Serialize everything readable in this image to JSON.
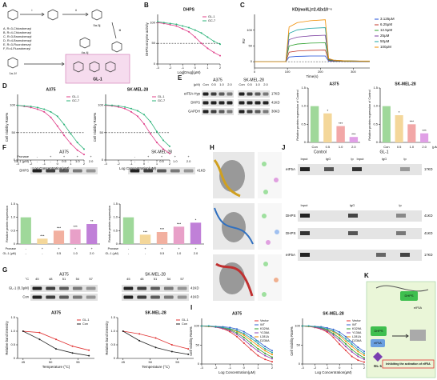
{
  "letters": [
    "A",
    "B",
    "C",
    "D",
    "E",
    "F",
    "G",
    "H",
    "I",
    "J",
    "K"
  ],
  "scheme": {
    "texts": [
      "i",
      "ii",
      "iii",
      "A, R=3-Chlorobenzyl",
      "B, R=4-Chlorobenzyl",
      "C, R=3-Bromobenzyl",
      "D, R=4-Bromobenzyl",
      "E, R=3-Fluorobenzyl",
      "F, R=4-Fluorobenzyl",
      "4a-4j",
      "5a-5j",
      "1a-1f",
      "GL-1"
    ]
  },
  "blots": {
    "E": [
      {
        "title": "A375",
        "rows": [
          {
            "label": "(μM)",
            "cells": [
              "Con",
              "0.5",
              "1.0",
              "2.0"
            ]
          }
        ],
        "bands": [
          {
            "label": "eIF5A-Hyp"
          },
          {
            "label": "DHPS"
          },
          {
            "label": "GAPDH"
          }
        ]
      },
      {
        "title": "SK-MEL-28",
        "rows": [
          {
            "cells": [
              "Con",
              "0.5",
              "1.0",
              "2.0"
            ]
          }
        ],
        "bands": [
          {
            "size": "17KD"
          },
          {
            "size": "41KD"
          },
          {
            "size": "36KD"
          }
        ]
      }
    ],
    "F": [
      {
        "title": "A375",
        "rows": [
          {
            "label": "Pronase",
            "cells": [
              "-",
              "+",
              "+",
              "+",
              "+"
            ]
          },
          {
            "label": "GL-1 (μM)",
            "cells": [
              "-",
              "-",
              "0.5",
              "1.0",
              "2.0"
            ]
          }
        ],
        "bands": [
          {
            "label": "DHPS"
          }
        ]
      },
      {
        "title": "SK-MEL-28",
        "rows": [
          {
            "cells": [
              "-",
              "+",
              "+",
              "+",
              "+"
            ]
          },
          {
            "cells": [
              "-",
              "-",
              "0.5",
              "1.0",
              "2.0"
            ]
          }
        ],
        "bands": [
          {
            "size": "41KD"
          }
        ]
      }
    ],
    "G": [
      {
        "title": "A375",
        "rows": [
          {
            "label": "°C",
            "cells": [
              "45",
              "48",
              "51",
              "54",
              "57"
            ]
          }
        ],
        "bands": [
          {
            "label": "GL-1 (0.3μM)"
          },
          {
            "label": "Con"
          }
        ]
      },
      {
        "title": "SK-MEL-28",
        "rows": [
          {
            "cells": [
              "45",
              "48",
              "51",
              "54",
              "57"
            ]
          }
        ],
        "bands": [
          {
            "size": "41KD"
          },
          {
            "size": "41KD"
          }
        ]
      }
    ]
  },
  "panel_J": {
    "texts": [
      "Control",
      "GL-1",
      "Input",
      "IgG",
      "Ip",
      "Input",
      "IgG",
      "Ip",
      "eIF5A",
      "17KD",
      "Input",
      "IgG",
      "Ip",
      "DHPS",
      "41KD",
      "DHPS",
      "41KD",
      "eIF5A",
      "17KD"
    ]
  },
  "panel_K": {
    "texts": [
      "GL-1",
      "DHPS",
      "eIF5A",
      "DHPS",
      "eIF5A",
      "Inhibiting the activation of eIF5A"
    ]
  },
  "chart_data": [
    {
      "type": "line",
      "title": "DHPS",
      "xlabel": "Log[Drug](μM)",
      "ylabel": "DHPS enzyme activity",
      "x": [
        -3,
        -2.5,
        -2,
        -1.5,
        -1,
        -0.5,
        0,
        0.5,
        1,
        1.5,
        2
      ],
      "series": [
        {
          "name": "GL-1",
          "color": "#e0408a",
          "values": [
            100,
            98,
            95,
            92,
            85,
            78,
            65,
            50,
            38,
            28,
            20
          ]
        },
        {
          "name": "GC-7",
          "color": "#2db37a",
          "values": [
            102,
            100,
            98,
            96,
            92,
            88,
            82,
            75,
            65,
            55,
            48
          ]
        }
      ],
      "xlim": [
        -3,
        2
      ],
      "ylim": [
        0,
        120
      ],
      "xticks": [
        -3,
        -2,
        -1,
        0,
        1,
        2
      ],
      "yticks": [
        0,
        50,
        100
      ],
      "hline": 50,
      "markers": true,
      "legend": "upper right"
    },
    {
      "type": "line",
      "title": "KD(mol/L)=2.42x10⁻⁶",
      "xlabel": "Time(s)",
      "ylabel": "RU",
      "x": [
        0,
        50,
        95,
        105,
        130,
        170,
        215,
        225,
        240,
        270,
        310,
        350
      ],
      "series": [
        {
          "name": "3.125μM",
          "color": "#1f4fd8",
          "values": [
            0,
            0,
            0,
            15,
            17,
            18,
            18,
            2,
            1,
            1,
            0,
            0
          ]
        },
        {
          "name": "6.25μM",
          "color": "#c0392b",
          "values": [
            0,
            0,
            0,
            30,
            34,
            36,
            37,
            4,
            2,
            1,
            1,
            0
          ]
        },
        {
          "name": "12.5μM",
          "color": "#2ca02c",
          "values": [
            0,
            0,
            0,
            50,
            56,
            59,
            60,
            6,
            3,
            2,
            1,
            1
          ]
        },
        {
          "name": "25μM",
          "color": "#7b3fa0",
          "values": [
            0,
            0,
            0,
            70,
            78,
            82,
            84,
            8,
            4,
            3,
            2,
            1
          ]
        },
        {
          "name": "50μM",
          "color": "#1aa3a3",
          "values": [
            0,
            0,
            0,
            90,
            101,
            106,
            108,
            9,
            5,
            3,
            2,
            1
          ]
        },
        {
          "name": "100μM",
          "color": "#f08c00",
          "values": [
            0,
            0,
            0,
            110,
            124,
            130,
            133,
            10,
            5,
            3,
            2,
            2
          ]
        }
      ],
      "xlim": [
        0,
        350
      ],
      "ylim": [
        -20,
        150
      ],
      "xticks": [
        0,
        100,
        200,
        300
      ],
      "yticks": [
        0,
        50,
        100
      ],
      "hline": 0,
      "legend": "right"
    },
    {
      "type": "line",
      "title": "A375",
      "xlabel": "Log Concentration(μM)",
      "ylabel": "Cell Viability Rate%",
      "x": [
        -3,
        -2.5,
        -2,
        -1.5,
        -1,
        -0.5,
        0,
        0.5,
        1,
        1.5,
        2
      ],
      "series": [
        {
          "name": "GL-1",
          "color": "#e0408a",
          "values": [
            100,
            98,
            96,
            93,
            88,
            78,
            62,
            45,
            30,
            18,
            10
          ]
        },
        {
          "name": "GC-7",
          "color": "#2db37a",
          "values": [
            100,
            99,
            98,
            96,
            93,
            88,
            80,
            65,
            48,
            32,
            20
          ]
        }
      ],
      "xlim": [
        -3,
        2
      ],
      "ylim": [
        0,
        120
      ],
      "xticks": [
        -3,
        -2,
        -1,
        0,
        1,
        2
      ],
      "yticks": [
        0,
        50,
        100
      ],
      "hline": 50,
      "markers": true,
      "legend": "upper right"
    },
    {
      "type": "line",
      "title": "SK-MEL-28",
      "xlabel": "Log Concentration(μM)",
      "ylabel": "Cell Viability Rate%",
      "x": [
        -3,
        -2.5,
        -2,
        -1.5,
        -1,
        -0.5,
        0,
        0.5,
        1,
        1.5,
        2
      ],
      "series": [
        {
          "name": "GL-1",
          "color": "#e0408a",
          "values": [
            100,
            99,
            97,
            94,
            88,
            80,
            66,
            48,
            32,
            20,
            12
          ]
        },
        {
          "name": "GC-7",
          "color": "#2db37a",
          "values": [
            101,
            100,
            99,
            97,
            94,
            90,
            83,
            70,
            52,
            36,
            25
          ]
        }
      ],
      "xlim": [
        -3,
        2
      ],
      "ylim": [
        0,
        120
      ],
      "xticks": [
        -3,
        -2,
        -1,
        0,
        1,
        2
      ],
      "yticks": [
        0,
        50,
        100
      ],
      "hline": 50,
      "markers": true,
      "legend": "upper right"
    },
    {
      "type": "bar",
      "title": "A375",
      "ylabel": "Relative protein expression of Control",
      "categories": [
        "Con",
        "0.5",
        "1.0",
        "2.0"
      ],
      "values": [
        1.0,
        0.8,
        0.45,
        0.15
      ],
      "annotations": [
        null,
        "*",
        "***",
        "***"
      ],
      "colors": [
        "#9fd89a",
        "#f4d79a",
        "#f2a7a7",
        "#e0a0e6"
      ],
      "ylim": [
        0,
        1.5
      ],
      "yticks": [
        0,
        0.5,
        {
          "value": 1,
          "label": "1.0"
        },
        1.5
      ]
    },
    {
      "type": "bar",
      "title": "SK-MEL-28",
      "ylabel": "Relative protein expression of Control",
      "categories": [
        "Con",
        "0.5",
        "1.0",
        "2.0"
      ],
      "values": [
        1.0,
        0.75,
        0.5,
        0.25
      ],
      "annotations": [
        null,
        "*",
        "***",
        "***"
      ],
      "colors": [
        "#9fd89a",
        "#f4d79a",
        "#f2a7a7",
        "#e0a0e6"
      ],
      "ylim": [
        0,
        1.5
      ],
      "yticks": [
        0,
        0.5,
        {
          "value": 1,
          "label": "1.0"
        },
        1.5
      ],
      "xunit": "(μM)"
    },
    {
      "type": "bar",
      "ylabel": "Relative protein expression",
      "row_labels": [
        "Pronase",
        "GL-1 (μM)"
      ],
      "pronase": [
        "-",
        "+",
        "+",
        "+",
        "+"
      ],
      "categories": [
        "-",
        "-",
        "0.5",
        "1.0",
        "2.0"
      ],
      "values": [
        1.0,
        0.2,
        0.5,
        0.55,
        0.75
      ],
      "annotations": [
        null,
        "***",
        "***",
        "***",
        "**"
      ],
      "colors": [
        "#9fd89a",
        "#f4d79a",
        "#f2b0a0",
        "#e8a0c8",
        "#c080d8"
      ],
      "ylim": [
        0,
        1.5
      ],
      "yticks": [
        0,
        0.5,
        {
          "value": 1,
          "label": "1.0"
        },
        1.5
      ]
    },
    {
      "type": "bar",
      "ylabel": "Relative protein expression",
      "row_labels": [
        "Pronase",
        "GL-1 (μM)"
      ],
      "pronase": [
        "-",
        "+",
        "+",
        "+",
        "+"
      ],
      "categories": [
        "-",
        "-",
        "0.5",
        "1.0",
        "2.0"
      ],
      "values": [
        1.0,
        0.35,
        0.45,
        0.65,
        0.8
      ],
      "annotations": [
        null,
        "***",
        "***",
        "***",
        "*"
      ],
      "colors": [
        "#9fd89a",
        "#f4d79a",
        "#f2b0a0",
        "#e8a0c8",
        "#c080d8"
      ],
      "ylim": [
        0,
        1.5
      ],
      "yticks": [
        0,
        0.5,
        {
          "value": 1,
          "label": "1.0"
        },
        1.5
      ]
    },
    {
      "type": "line",
      "title": "A375",
      "xlabel": "Temperature (°C)",
      "ylabel": "Relative band intensity",
      "x": [
        45,
        48,
        51,
        54,
        57
      ],
      "series": [
        {
          "name": "GL-1",
          "color": "#e03030",
          "values": [
            1.0,
            0.95,
            0.7,
            0.45,
            0.3
          ]
        },
        {
          "name": "Con",
          "color": "#222222",
          "values": [
            1.0,
            0.7,
            0.35,
            0.2,
            0.1
          ]
        }
      ],
      "xlim": [
        44,
        58
      ],
      "ylim": [
        0,
        1.5
      ],
      "xticks": [
        45,
        50,
        55
      ],
      "yticks": [
        0,
        0.5,
        {
          "value": 1,
          "label": "1.0"
        },
        1.5
      ],
      "markers": true,
      "legend": "upper right"
    },
    {
      "type": "line",
      "title": "SK-MEL-28",
      "xlabel": "Temperature (°C)",
      "ylabel": "Relative band intensity",
      "x": [
        45,
        48,
        51,
        54,
        57
      ],
      "series": [
        {
          "name": "GL-1",
          "color": "#e03030",
          "values": [
            1.0,
            0.9,
            0.75,
            0.5,
            0.35
          ]
        },
        {
          "name": "Con",
          "color": "#222222",
          "values": [
            1.0,
            0.65,
            0.4,
            0.25,
            0.15
          ]
        }
      ],
      "xlim": [
        44,
        58
      ],
      "ylim": [
        0,
        1.5
      ],
      "xticks": [
        45,
        50,
        55
      ],
      "yticks": [
        0,
        0.5,
        {
          "value": 1,
          "label": "1.0"
        },
        1.5
      ],
      "markers": true,
      "legend": "upper right"
    },
    {
      "type": "line",
      "title": "A375",
      "xlabel": "Log Concentration(μM)",
      "ylabel": "Cell Viability Rate%",
      "x": [
        -3,
        -2.5,
        -2,
        -1.5,
        -1,
        -0.5,
        0,
        0.5,
        1,
        1.5,
        2
      ],
      "series": [
        {
          "name": "Vector",
          "color": "#e03030",
          "values": [
            100,
            99,
            97,
            93,
            85,
            72,
            55,
            38,
            22,
            12,
            6
          ]
        },
        {
          "name": "WT",
          "color": "#3060d0",
          "values": [
            100,
            100,
            99,
            98,
            96,
            92,
            85,
            74,
            60,
            46,
            35
          ]
        },
        {
          "name": "K329A",
          "color": "#2ca02c",
          "values": [
            100,
            99,
            98,
            95,
            90,
            82,
            70,
            55,
            40,
            28,
            18
          ]
        },
        {
          "name": "Y136A",
          "color": "#9040b0",
          "values": [
            100,
            99,
            97,
            94,
            88,
            78,
            64,
            48,
            34,
            22,
            14
          ]
        },
        {
          "name": "L281A",
          "color": "#f08c00",
          "values": [
            100,
            99,
            98,
            96,
            92,
            86,
            76,
            62,
            48,
            35,
            25
          ]
        },
        {
          "name": "D236A",
          "color": "#1aa3a3",
          "values": [
            100,
            100,
            98,
            96,
            93,
            88,
            80,
            68,
            54,
            40,
            30
          ]
        }
      ],
      "xlim": [
        -3,
        2
      ],
      "ylim": [
        0,
        120
      ],
      "xticks": [
        -3,
        -2,
        -1,
        0,
        1,
        2
      ],
      "yticks": [
        0,
        50,
        100
      ],
      "markers": true,
      "legend": "upper right"
    },
    {
      "type": "line",
      "title": "SK-MEL-28",
      "xlabel": "Log Concentration(μM)",
      "ylabel": "Cell Viability Rate%",
      "x": [
        -3,
        -2.5,
        -2,
        -1.5,
        -1,
        -0.5,
        0,
        0.5,
        1,
        1.5,
        2
      ],
      "series": [
        {
          "name": "Vector",
          "color": "#e03030",
          "values": [
            100,
            99,
            96,
            92,
            84,
            70,
            52,
            36,
            20,
            10,
            5
          ]
        },
        {
          "name": "WT",
          "color": "#3060d0",
          "values": [
            100,
            100,
            99,
            98,
            95,
            91,
            84,
            72,
            58,
            44,
            33
          ]
        },
        {
          "name": "K329A",
          "color": "#2ca02c",
          "values": [
            100,
            99,
            98,
            95,
            89,
            80,
            68,
            53,
            38,
            26,
            16
          ]
        },
        {
          "name": "Y136A",
          "color": "#9040b0",
          "values": [
            100,
            99,
            97,
            93,
            87,
            76,
            62,
            46,
            32,
            20,
            12
          ]
        },
        {
          "name": "L281A",
          "color": "#f08c00",
          "values": [
            100,
            99,
            98,
            96,
            91,
            85,
            75,
            60,
            46,
            33,
            23
          ]
        },
        {
          "name": "D236A",
          "color": "#1aa3a3",
          "values": [
            100,
            100,
            98,
            96,
            92,
            87,
            78,
            66,
            52,
            38,
            28
          ]
        }
      ],
      "xlim": [
        -3,
        2
      ],
      "ylim": [
        0,
        120
      ],
      "xticks": [
        -3,
        -2,
        -1,
        0,
        1,
        2
      ],
      "yticks": [
        0,
        50,
        100
      ],
      "markers": true,
      "legend": "upper right"
    }
  ]
}
